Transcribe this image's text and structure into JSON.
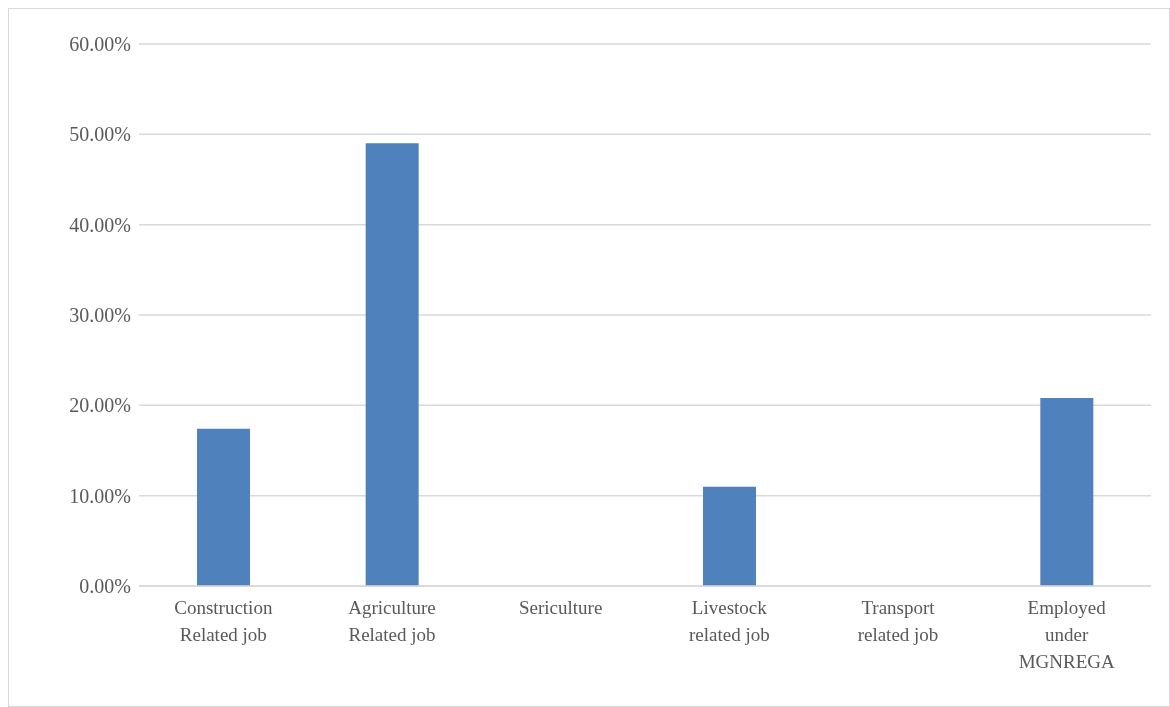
{
  "chart_data": {
    "type": "bar",
    "categories": [
      "Construction Related job",
      "Agriculture Related job",
      "Sericulture",
      "Livestock related job",
      "Transport related job",
      "Employed under MGNREGA"
    ],
    "values": [
      17.4,
      49.0,
      0,
      11.0,
      0,
      20.8
    ],
    "color": "#4f81bd",
    "ylim": [
      0,
      60
    ],
    "yticks": [
      {
        "value": 0,
        "label": "0.00%"
      },
      {
        "value": 10,
        "label": "10.00%"
      },
      {
        "value": 20,
        "label": "20.00%"
      },
      {
        "value": 30,
        "label": "30.00%"
      },
      {
        "value": 40,
        "label": "40.00%"
      },
      {
        "value": 50,
        "label": "50.00%"
      },
      {
        "value": 60,
        "label": "60.00%"
      }
    ],
    "grid": "y"
  }
}
